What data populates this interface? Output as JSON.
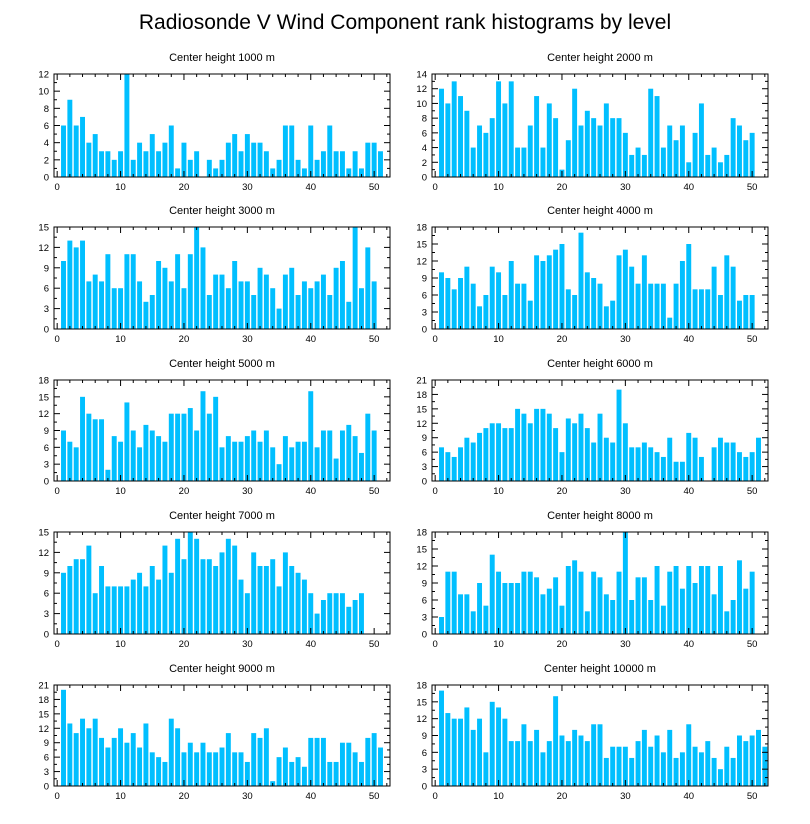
{
  "title": "Radiosonde V Wind Component rank histograms by level",
  "colors": {
    "bar": "#00BFFF",
    "axis": "#000000",
    "background": "#ffffff"
  },
  "chart_data": [
    {
      "type": "bar",
      "title": "Center height 1000 m",
      "xlim": [
        -0.5,
        52.5
      ],
      "ylim": [
        0,
        12
      ],
      "yticks": [
        0,
        2,
        4,
        6,
        8,
        10,
        12
      ],
      "xticks": [
        0,
        10,
        20,
        30,
        40,
        50
      ],
      "values": [
        6,
        9,
        6,
        7,
        4,
        5,
        3,
        3,
        2,
        3,
        12,
        2,
        4,
        3,
        5,
        3,
        4,
        6,
        1,
        4,
        2,
        3,
        0,
        2,
        1,
        2,
        4,
        5,
        3,
        5,
        4,
        4,
        3,
        1,
        2,
        6,
        6,
        2,
        1,
        6,
        2,
        3,
        6,
        3,
        3,
        1,
        3,
        1,
        4,
        4,
        3
      ]
    },
    {
      "type": "bar",
      "title": "Center height 2000 m",
      "xlim": [
        -0.5,
        52.5
      ],
      "ylim": [
        0,
        14
      ],
      "yticks": [
        0,
        2,
        4,
        6,
        8,
        10,
        12,
        14
      ],
      "xticks": [
        0,
        10,
        20,
        30,
        40,
        50
      ],
      "values": [
        12,
        10,
        13,
        11,
        9,
        4,
        7,
        6,
        8,
        13,
        10,
        13,
        4,
        4,
        7,
        11,
        4,
        10,
        8,
        1,
        5,
        12,
        7,
        9,
        8,
        7,
        10,
        8,
        8,
        6,
        3,
        4,
        3,
        12,
        11,
        4,
        7,
        5,
        7,
        2,
        6,
        10,
        3,
        4,
        2,
        3,
        8,
        7,
        5,
        6
      ]
    },
    {
      "type": "bar",
      "title": "Center height 3000 m",
      "xlim": [
        -0.5,
        52.5
      ],
      "ylim": [
        0,
        15
      ],
      "yticks": [
        0,
        3,
        6,
        9,
        12,
        15
      ],
      "xticks": [
        0,
        10,
        20,
        30,
        40,
        50
      ],
      "values": [
        10,
        13,
        12,
        13,
        7,
        8,
        7,
        11,
        6,
        6,
        11,
        11,
        7,
        4,
        5,
        10,
        9,
        7,
        11,
        6,
        11,
        15,
        12,
        5,
        8,
        8,
        6,
        10,
        7,
        7,
        5,
        9,
        8,
        6,
        3,
        8,
        9,
        5,
        7,
        6,
        7,
        8,
        5,
        9,
        10,
        4,
        15,
        6,
        12,
        7
      ]
    },
    {
      "type": "bar",
      "title": "Center height 4000 m",
      "xlim": [
        -0.5,
        52.5
      ],
      "ylim": [
        0,
        18
      ],
      "yticks": [
        0,
        3,
        6,
        9,
        12,
        15,
        18
      ],
      "xticks": [
        0,
        10,
        20,
        30,
        40,
        50
      ],
      "values": [
        10,
        9,
        7,
        9,
        11,
        8,
        4,
        6,
        11,
        10,
        6,
        12,
        8,
        8,
        5,
        13,
        12,
        13,
        14,
        15,
        7,
        6,
        17,
        10,
        9,
        8,
        4,
        5,
        13,
        14,
        11,
        8,
        13,
        8,
        8,
        8,
        2,
        8,
        12,
        15,
        7,
        7,
        7,
        11,
        6,
        13,
        11,
        5,
        6,
        6
      ]
    },
    {
      "type": "bar",
      "title": "Center height 5000 m",
      "xlim": [
        -0.5,
        52.5
      ],
      "ylim": [
        0,
        18
      ],
      "yticks": [
        0,
        3,
        6,
        9,
        12,
        15,
        18
      ],
      "xticks": [
        0,
        10,
        20,
        30,
        40,
        50
      ],
      "values": [
        9,
        7,
        6,
        15,
        12,
        11,
        11,
        2,
        8,
        7,
        14,
        9,
        6,
        10,
        9,
        8,
        7,
        12,
        12,
        12,
        13,
        9,
        16,
        12,
        15,
        6,
        8,
        7,
        7,
        8,
        9,
        7,
        9,
        6,
        3,
        8,
        6,
        7,
        7,
        16,
        6,
        9,
        9,
        4,
        9,
        10,
        8,
        5,
        12,
        9
      ]
    },
    {
      "type": "bar",
      "title": "Center height 6000 m",
      "xlim": [
        -0.5,
        52.5
      ],
      "ylim": [
        0,
        21
      ],
      "yticks": [
        0,
        3,
        6,
        9,
        12,
        15,
        18,
        21
      ],
      "xticks": [
        0,
        10,
        20,
        30,
        40,
        50
      ],
      "values": [
        7,
        6,
        5,
        7,
        9,
        8,
        10,
        11,
        12,
        12,
        11,
        11,
        15,
        14,
        12,
        15,
        15,
        14,
        11,
        6,
        13,
        12,
        14,
        11,
        8,
        14,
        9,
        8,
        19,
        12,
        7,
        7,
        8,
        7,
        6,
        5,
        9,
        4,
        4,
        10,
        9,
        5,
        0,
        7,
        9,
        8,
        8,
        6,
        5,
        6,
        9
      ]
    },
    {
      "type": "bar",
      "title": "Center height 7000 m",
      "xlim": [
        -0.5,
        52.5
      ],
      "ylim": [
        0,
        15
      ],
      "yticks": [
        0,
        3,
        6,
        9,
        12,
        15
      ],
      "xticks": [
        0,
        10,
        20,
        30,
        40,
        50
      ],
      "values": [
        9,
        10,
        11,
        11,
        13,
        6,
        10,
        7,
        7,
        7,
        7,
        8,
        9,
        7,
        10,
        8,
        13,
        9,
        14,
        11,
        15,
        14,
        11,
        11,
        10,
        12,
        14,
        13,
        8,
        6,
        12,
        10,
        10,
        11,
        7,
        12,
        10,
        9,
        8,
        6,
        3,
        5,
        6,
        6,
        6,
        4,
        5,
        6
      ]
    },
    {
      "type": "bar",
      "title": "Center height 8000 m",
      "xlim": [
        -0.5,
        52.5
      ],
      "ylim": [
        0,
        18
      ],
      "yticks": [
        0,
        3,
        6,
        9,
        12,
        15,
        18
      ],
      "xticks": [
        0,
        10,
        20,
        30,
        40,
        50
      ],
      "values": [
        3,
        11,
        11,
        7,
        7,
        4,
        9,
        5,
        14,
        11,
        9,
        9,
        9,
        11,
        11,
        10,
        7,
        8,
        10,
        5,
        12,
        13,
        11,
        4,
        11,
        10,
        7,
        6,
        11,
        18,
        6,
        10,
        10,
        6,
        12,
        5,
        11,
        12,
        8,
        12,
        9,
        12,
        12,
        7,
        12,
        4,
        6,
        13,
        8,
        11
      ]
    },
    {
      "type": "bar",
      "title": "Center height 9000 m",
      "xlim": [
        -0.5,
        52.5
      ],
      "ylim": [
        0,
        21
      ],
      "yticks": [
        0,
        3,
        6,
        9,
        12,
        15,
        18,
        21
      ],
      "xticks": [
        0,
        10,
        20,
        30,
        40,
        50
      ],
      "values": [
        20,
        13,
        11,
        14,
        12,
        14,
        10,
        8,
        10,
        12,
        9,
        11,
        8,
        13,
        7,
        6,
        5,
        14,
        12,
        7,
        9,
        7,
        9,
        7,
        7,
        8,
        11,
        7,
        7,
        5,
        11,
        10,
        12,
        1,
        6,
        8,
        5,
        6,
        4,
        10,
        10,
        10,
        5,
        5,
        9,
        9,
        7,
        5,
        10,
        11,
        8
      ]
    },
    {
      "type": "bar",
      "title": "Center height 10000 m",
      "xlim": [
        -0.5,
        52.5
      ],
      "ylim": [
        0,
        18
      ],
      "yticks": [
        0,
        3,
        6,
        9,
        12,
        15,
        18
      ],
      "xticks": [
        0,
        10,
        20,
        30,
        40,
        50
      ],
      "values": [
        17,
        13,
        12,
        12,
        14,
        10,
        12,
        6,
        15,
        14,
        12,
        8,
        8,
        11,
        8,
        10,
        6,
        8,
        16,
        9,
        8,
        10,
        9,
        8,
        11,
        11,
        5,
        7,
        7,
        7,
        5,
        8,
        10,
        7,
        9,
        6,
        10,
        5,
        6,
        11,
        7,
        6,
        8,
        5,
        3,
        7,
        5,
        9,
        8,
        9,
        10,
        7
      ]
    }
  ]
}
